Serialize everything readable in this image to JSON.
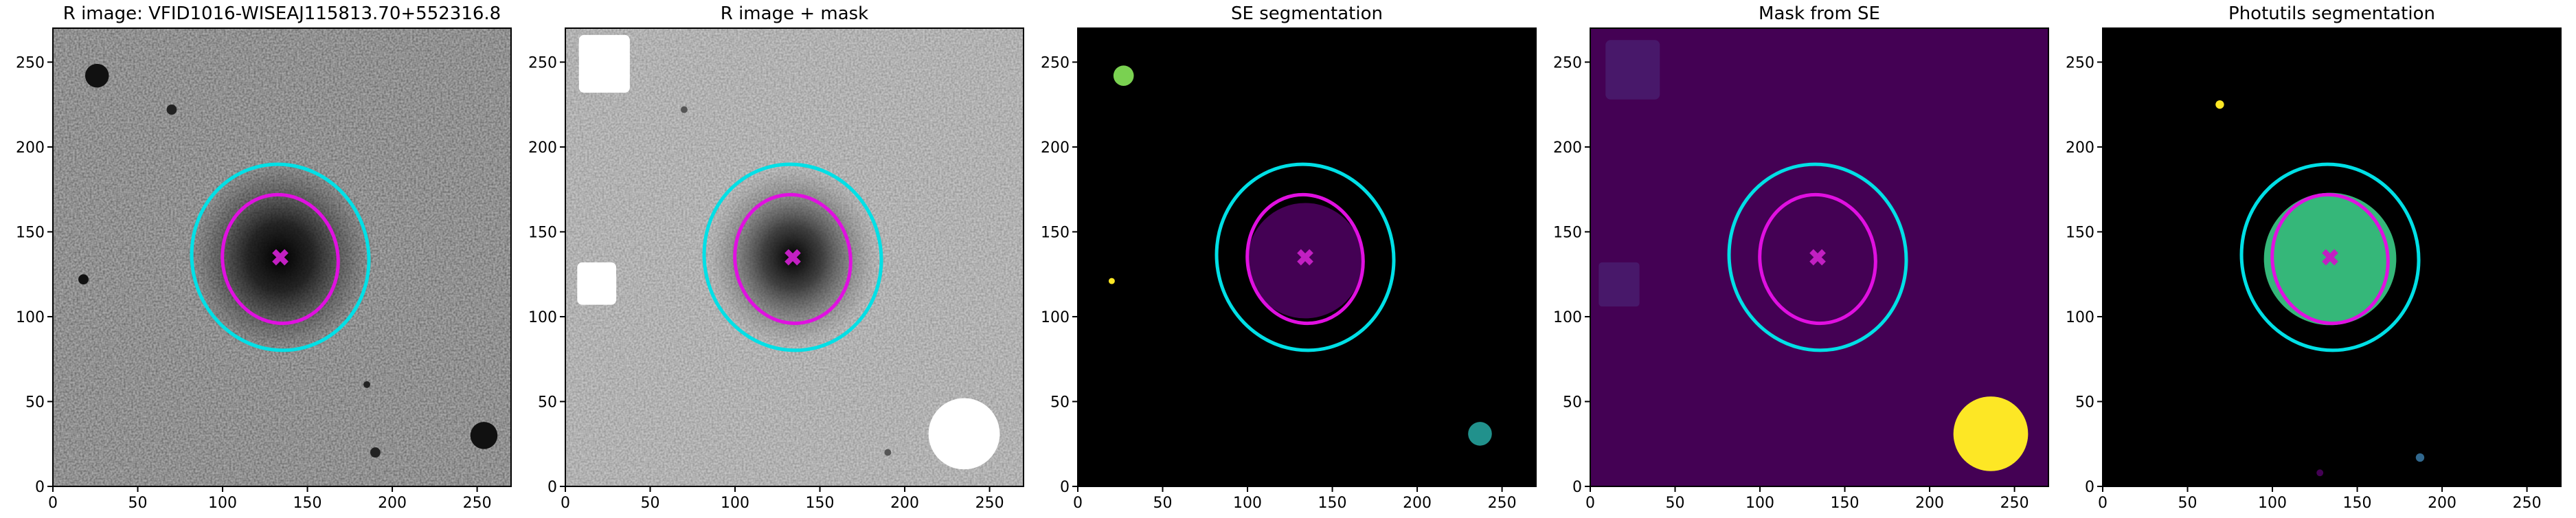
{
  "chart_data": [
    {
      "type": "image",
      "title": "R image: VFID1016-WISEAJ115813.70+552316.8",
      "xlim": [
        0,
        270
      ],
      "ylim": [
        0,
        270
      ],
      "xticks": [
        0,
        50,
        100,
        150,
        200,
        250
      ],
      "yticks": [
        0,
        50,
        100,
        150,
        200,
        250
      ],
      "ellipses": [
        {
          "x": 134,
          "y": 135,
          "rx": 52,
          "ry": 55,
          "angle": 15,
          "color": "#00e0e6"
        },
        {
          "x": 134,
          "y": 134,
          "rx": 34,
          "ry": 38,
          "angle": 10,
          "color": "#e010e0"
        }
      ],
      "marker": {
        "x": 134,
        "y": 135,
        "color": "#c21fc2"
      }
    },
    {
      "type": "image",
      "title": "R image + mask",
      "xlim": [
        0,
        270
      ],
      "ylim": [
        0,
        270
      ],
      "xticks": [
        0,
        50,
        100,
        150,
        200,
        250
      ],
      "yticks": [
        0,
        50,
        100,
        150,
        200,
        250
      ],
      "ellipses": [
        {
          "x": 134,
          "y": 135,
          "rx": 52,
          "ry": 55,
          "angle": 15,
          "color": "#00e0e6"
        },
        {
          "x": 134,
          "y": 134,
          "rx": 34,
          "ry": 38,
          "angle": 10,
          "color": "#e010e0"
        }
      ],
      "marker": {
        "x": 134,
        "y": 135,
        "color": "#c21fc2"
      }
    },
    {
      "type": "image",
      "title": "SE segmentation",
      "xlim": [
        0,
        270
      ],
      "ylim": [
        0,
        270
      ],
      "xticks": [
        0,
        50,
        100,
        150,
        200,
        250
      ],
      "yticks": [
        0,
        50,
        100,
        150,
        200,
        250
      ],
      "ellipses": [
        {
          "x": 134,
          "y": 135,
          "rx": 52,
          "ry": 55,
          "angle": 15,
          "color": "#00e0e6"
        },
        {
          "x": 134,
          "y": 134,
          "rx": 34,
          "ry": 38,
          "angle": 10,
          "color": "#e010e0"
        }
      ],
      "marker": {
        "x": 134,
        "y": 135,
        "color": "#c21fc2"
      }
    },
    {
      "type": "image",
      "title": "Mask from SE",
      "xlim": [
        0,
        270
      ],
      "ylim": [
        0,
        270
      ],
      "xticks": [
        0,
        50,
        100,
        150,
        200,
        250
      ],
      "yticks": [
        0,
        50,
        100,
        150,
        200,
        250
      ],
      "ellipses": [
        {
          "x": 134,
          "y": 135,
          "rx": 52,
          "ry": 55,
          "angle": 15,
          "color": "#00e0e6"
        },
        {
          "x": 134,
          "y": 134,
          "rx": 34,
          "ry": 38,
          "angle": 10,
          "color": "#e010e0"
        }
      ],
      "marker": {
        "x": 134,
        "y": 135,
        "color": "#c21fc2"
      }
    },
    {
      "type": "image",
      "title": "Photutils segmentation",
      "xlim": [
        0,
        270
      ],
      "ylim": [
        0,
        270
      ],
      "xticks": [
        0,
        50,
        100,
        150,
        200,
        250
      ],
      "yticks": [
        0,
        50,
        100,
        150,
        200,
        250
      ],
      "ellipses": [
        {
          "x": 134,
          "y": 135,
          "rx": 52,
          "ry": 55,
          "angle": 15,
          "color": "#00e0e6"
        },
        {
          "x": 134,
          "y": 134,
          "rx": 34,
          "ry": 38,
          "angle": 10,
          "color": "#e010e0"
        }
      ],
      "marker": {
        "x": 134,
        "y": 135,
        "color": "#c21fc2"
      }
    }
  ]
}
